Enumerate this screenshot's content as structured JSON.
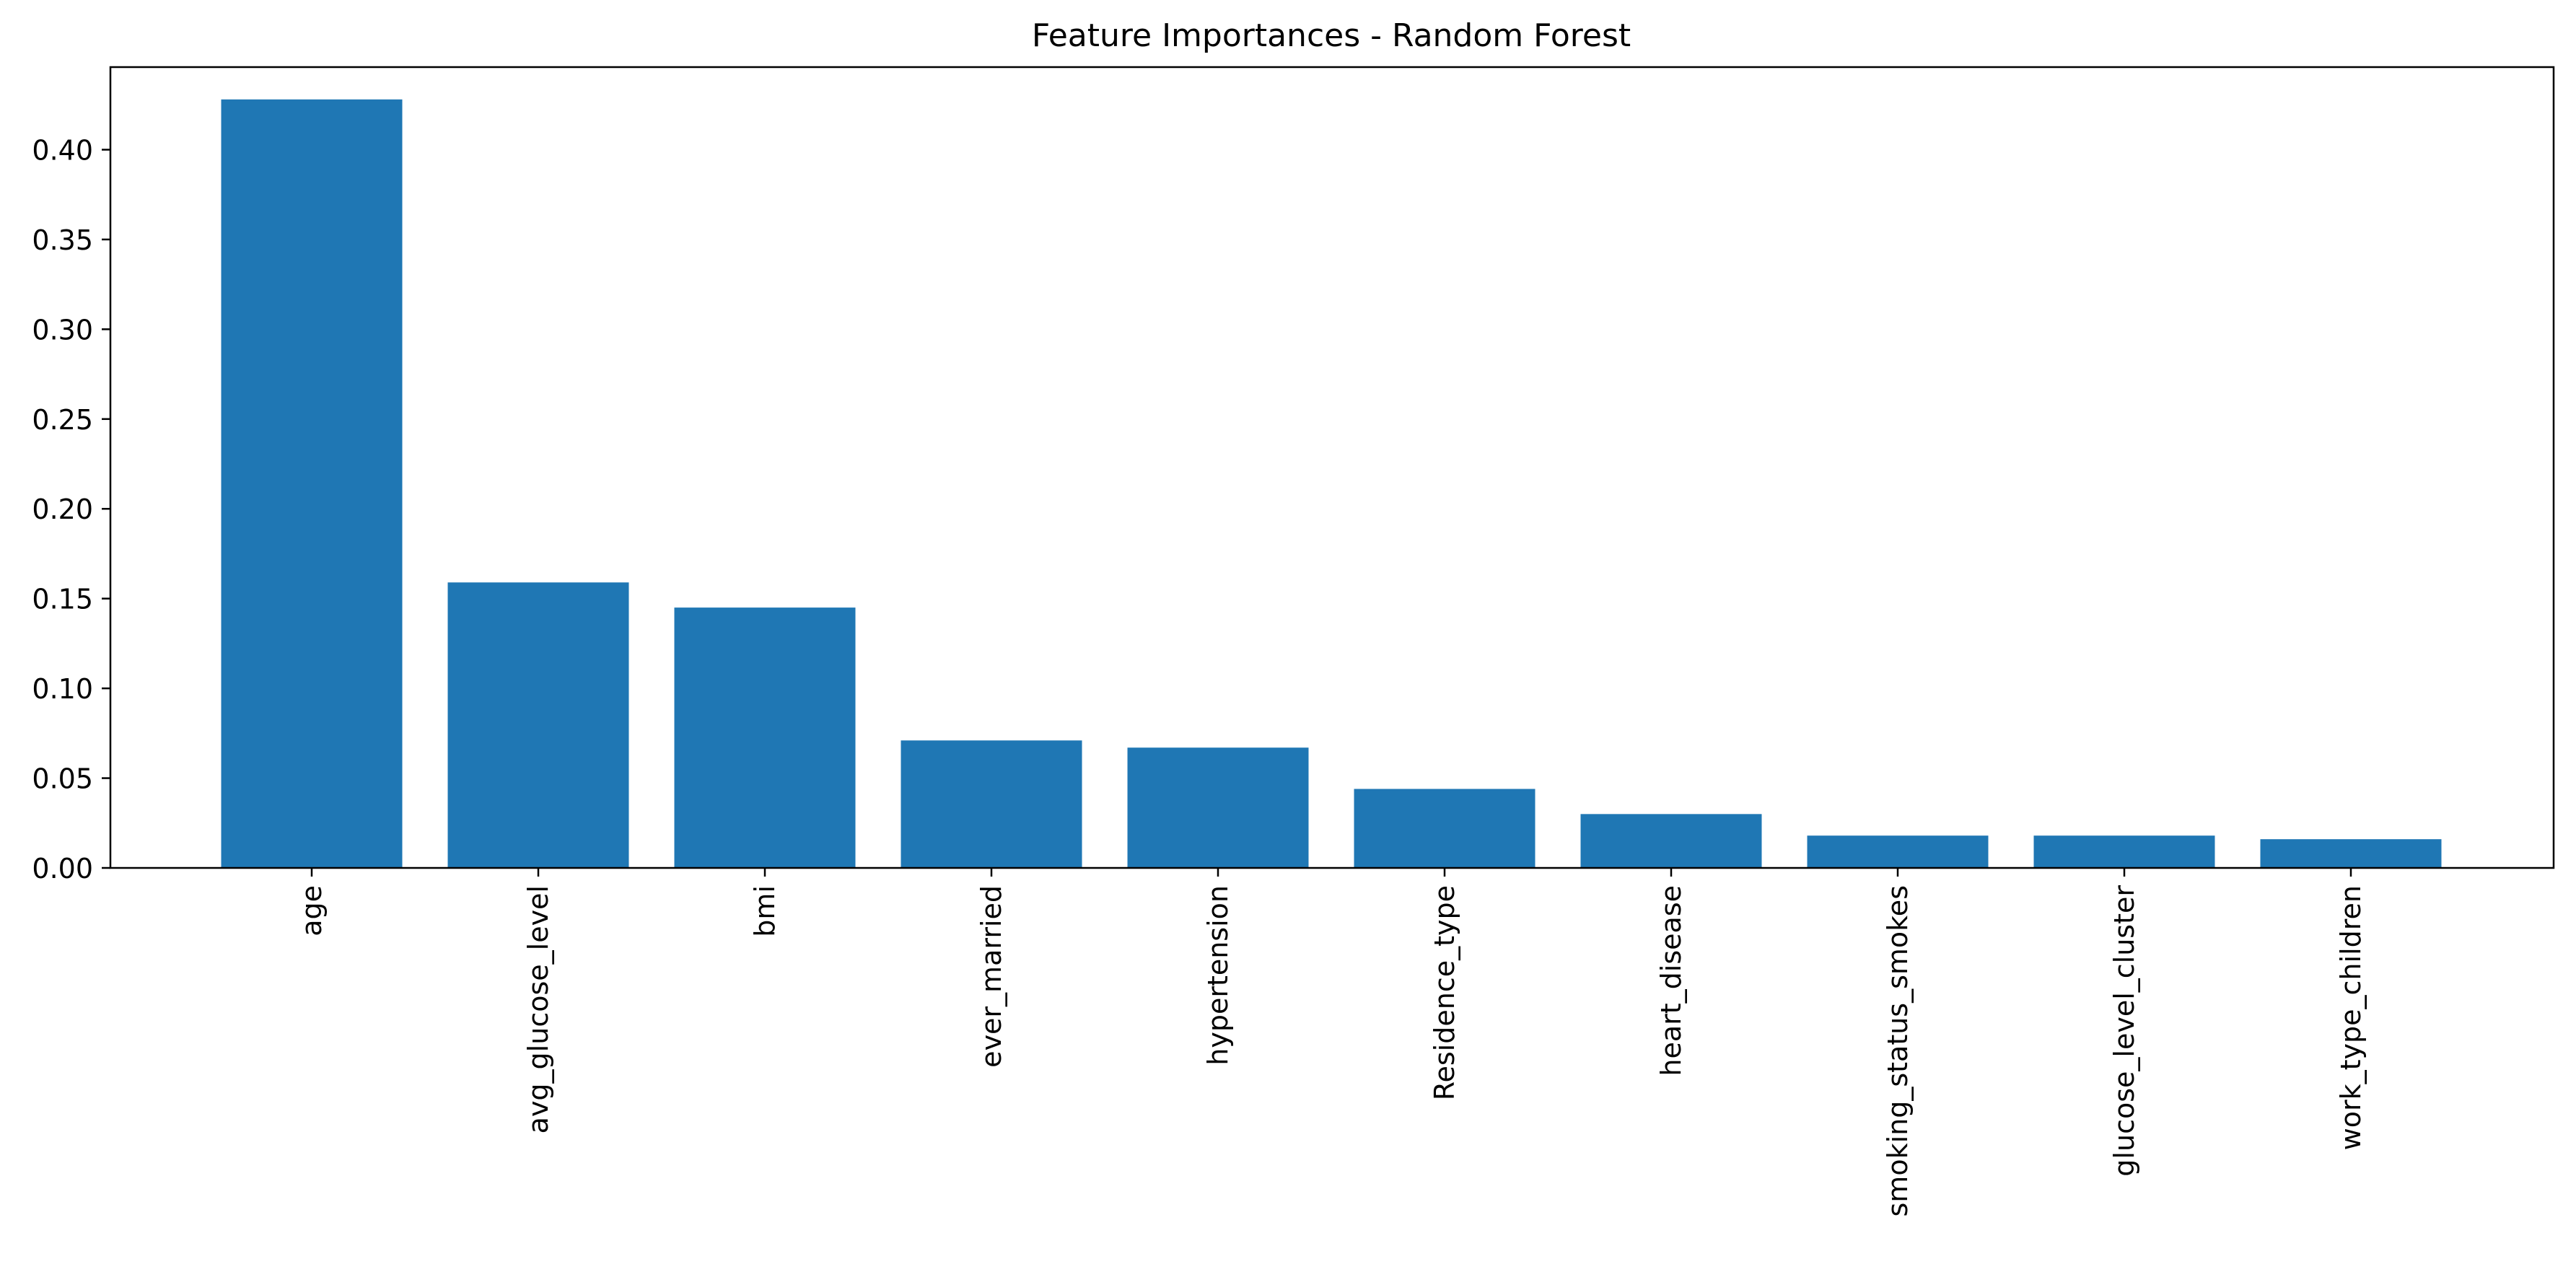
{
  "chart_data": {
    "type": "bar",
    "title": "Feature Importances - Random Forest",
    "xlabel": "",
    "ylabel": "",
    "categories": [
      "age",
      "avg_glucose_level",
      "bmi",
      "ever_married",
      "hypertension",
      "Residence_type",
      "heart_disease",
      "smoking_status_smokes",
      "glucose_level_cluster",
      "work_type_children"
    ],
    "values": [
      0.428,
      0.159,
      0.145,
      0.071,
      0.067,
      0.044,
      0.03,
      0.018,
      0.018,
      0.016
    ],
    "ylim": [
      0,
      0.446
    ],
    "yticks": [
      "0.00",
      "0.05",
      "0.10",
      "0.15",
      "0.20",
      "0.25",
      "0.30",
      "0.35",
      "0.40"
    ],
    "ytick_values": [
      0,
      0.05,
      0.1,
      0.15,
      0.2,
      0.25,
      0.3,
      0.35,
      0.4
    ],
    "bar_color": "#1f77b4",
    "grid": false,
    "legend": "none"
  }
}
